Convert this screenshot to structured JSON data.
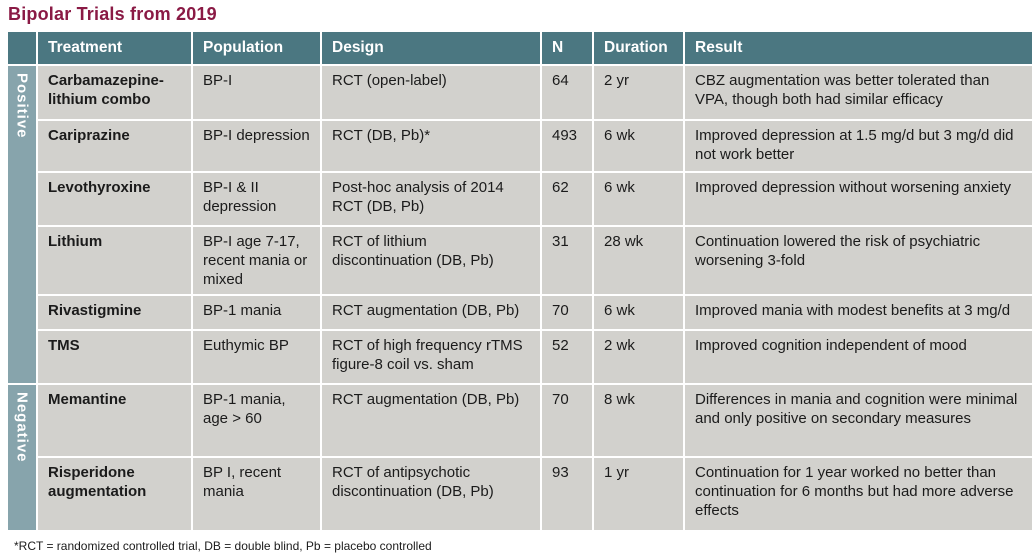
{
  "title": "Bipolar Trials from 2019",
  "colors": {
    "title_text": "#8a1a45",
    "header_bg": "#4b7781",
    "section_bg": "#87a4ac",
    "row_bg": "#d2d1cd",
    "header_text": "#ffffff",
    "body_text": "#1b1b1b"
  },
  "table": {
    "columns": [
      "Treatment",
      "Population",
      "Design",
      "N",
      "Duration",
      "Result"
    ],
    "sections": [
      {
        "label": "Positive"
      },
      {
        "label": "Negative"
      }
    ],
    "rows": [
      {
        "treatment": "Carbamazepine-lithium combo",
        "population": "BP-I",
        "design": "RCT (open-label)",
        "n": "64",
        "duration": "2 yr",
        "result": "CBZ augmentation was better tolerated than VPA, though both had similar efficacy"
      },
      {
        "treatment": "Cariprazine",
        "population": "BP-I depression",
        "design": "RCT (DB, Pb)*",
        "n": "493",
        "duration": "6 wk",
        "result": "Improved depression at 1.5 mg/d but 3 mg/d did not work better"
      },
      {
        "treatment": "Levothyroxine",
        "population": "BP-I & II depression",
        "design": "Post-hoc analysis of 2014 RCT (DB, Pb)",
        "n": "62",
        "duration": "6 wk",
        "result": "Improved depression without worsening anxiety"
      },
      {
        "treatment": "Lithium",
        "population": "BP-I age 7-17, recent mania or mixed",
        "design": "RCT of lithium discontinuation (DB, Pb)",
        "n": "31",
        "duration": "28 wk",
        "result": "Continuation lowered the risk of psychiatric worsening 3-fold"
      },
      {
        "treatment": "Rivastigmine",
        "population": "BP-1 mania",
        "design": "RCT augmentation (DB, Pb)",
        "n": "70",
        "duration": "6 wk",
        "result": "Improved mania with modest benefits at 3 mg/d"
      },
      {
        "treatment": "TMS",
        "population": "Euthymic BP",
        "design": "RCT of high frequency rTMS figure-8 coil vs. sham",
        "n": "52",
        "duration": "2 wk",
        "result": "Improved cognition independent of mood"
      },
      {
        "treatment": "Memantine",
        "population": "BP-1 mania, age > 60",
        "design": "RCT  augmentation (DB, Pb)",
        "n": "70",
        "duration": "8 wk",
        "result": "Differences in mania and cognition were minimal and only positive on secondary measures"
      },
      {
        "treatment": "Risperidone augmentation",
        "population": "BP I, recent mania",
        "design": "RCT of antipsychotic discontinuation (DB, Pb)",
        "n": "93",
        "duration": "1 yr",
        "result": "Continuation for 1 year worked no better than continuation for 6 months but had more adverse effects"
      }
    ]
  },
  "footnote": "*RCT = randomized controlled trial, DB = double blind, Pb = placebo controlled"
}
